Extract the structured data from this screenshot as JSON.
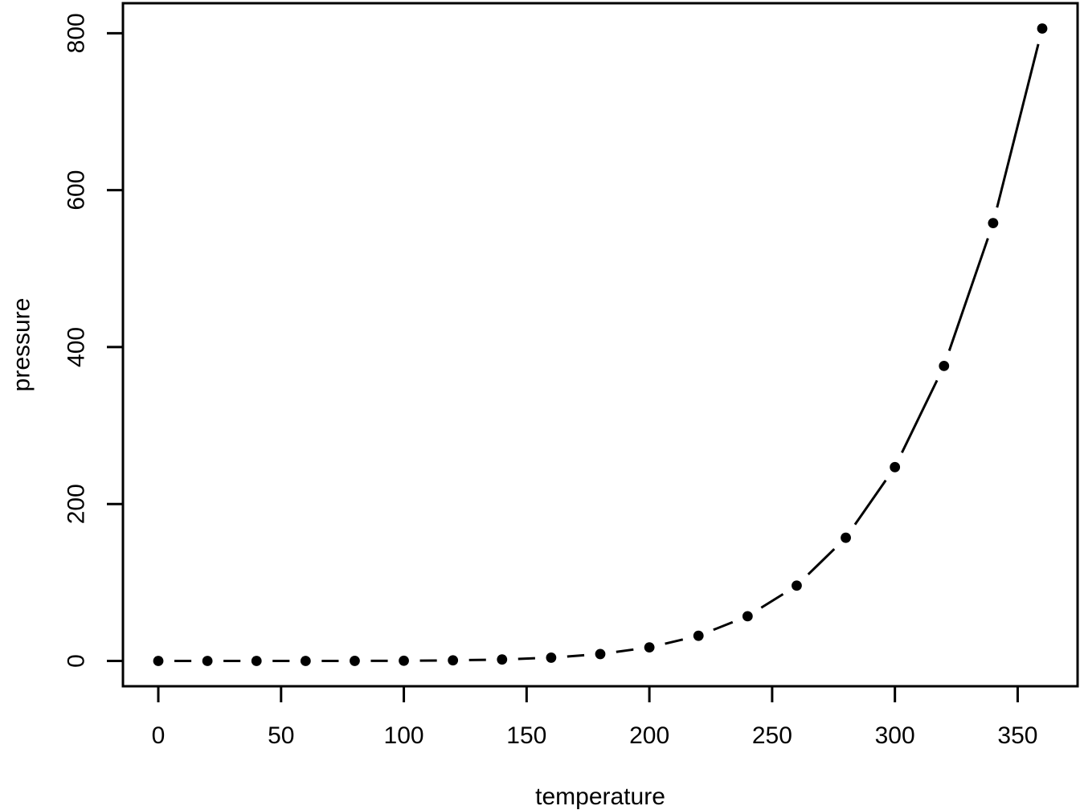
{
  "figure": {
    "background": "#ffffff",
    "foreground": "#000000"
  },
  "chart_data": {
    "type": "line",
    "subtype": "points-and-segments",
    "title": "",
    "xlabel": "temperature",
    "ylabel": "pressure",
    "x": [
      0,
      20,
      40,
      60,
      80,
      100,
      120,
      140,
      160,
      180,
      200,
      220,
      240,
      260,
      280,
      300,
      320,
      340,
      360
    ],
    "y": [
      0.0002,
      0.0012,
      0.006,
      0.03,
      0.09,
      0.27,
      0.75,
      1.85,
      4.2,
      8.8,
      17.3,
      32.1,
      57,
      96,
      157,
      247,
      376,
      558,
      806
    ],
    "x_ticks": [
      0,
      50,
      100,
      150,
      200,
      250,
      300,
      350
    ],
    "y_ticks": [
      0,
      200,
      400,
      600,
      800
    ],
    "xlim": [
      0,
      360
    ],
    "ylim": [
      0,
      806
    ],
    "grid": false,
    "legend": false,
    "marker": "filled-circle",
    "marker_color": "#000000",
    "line_color": "#000000"
  }
}
